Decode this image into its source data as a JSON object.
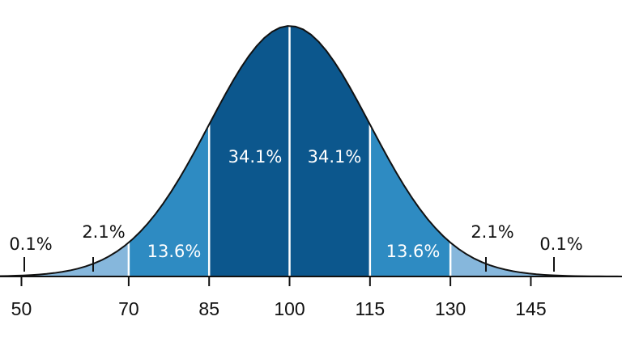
{
  "chart_data": {
    "type": "normal-distribution",
    "xlim": [
      46,
      162
    ],
    "xticks": [
      50,
      70,
      85,
      100,
      115,
      130,
      145
    ],
    "values": [
      0.1,
      2.1,
      13.6,
      34.1,
      34.1,
      13.6,
      2.1,
      0.1
    ],
    "value_labels": [
      "0.1%",
      "2.1%",
      "13.6%",
      "34.1%",
      "34.1%",
      "13.6%",
      "2.1%",
      "0.1%"
    ],
    "colors": [
      "#86b7dc",
      "#86b7dc",
      "#2e8bc2",
      "#0c578d",
      "#0c578d",
      "#2e8bc2",
      "#86b7dc",
      "#86b7dc"
    ]
  }
}
